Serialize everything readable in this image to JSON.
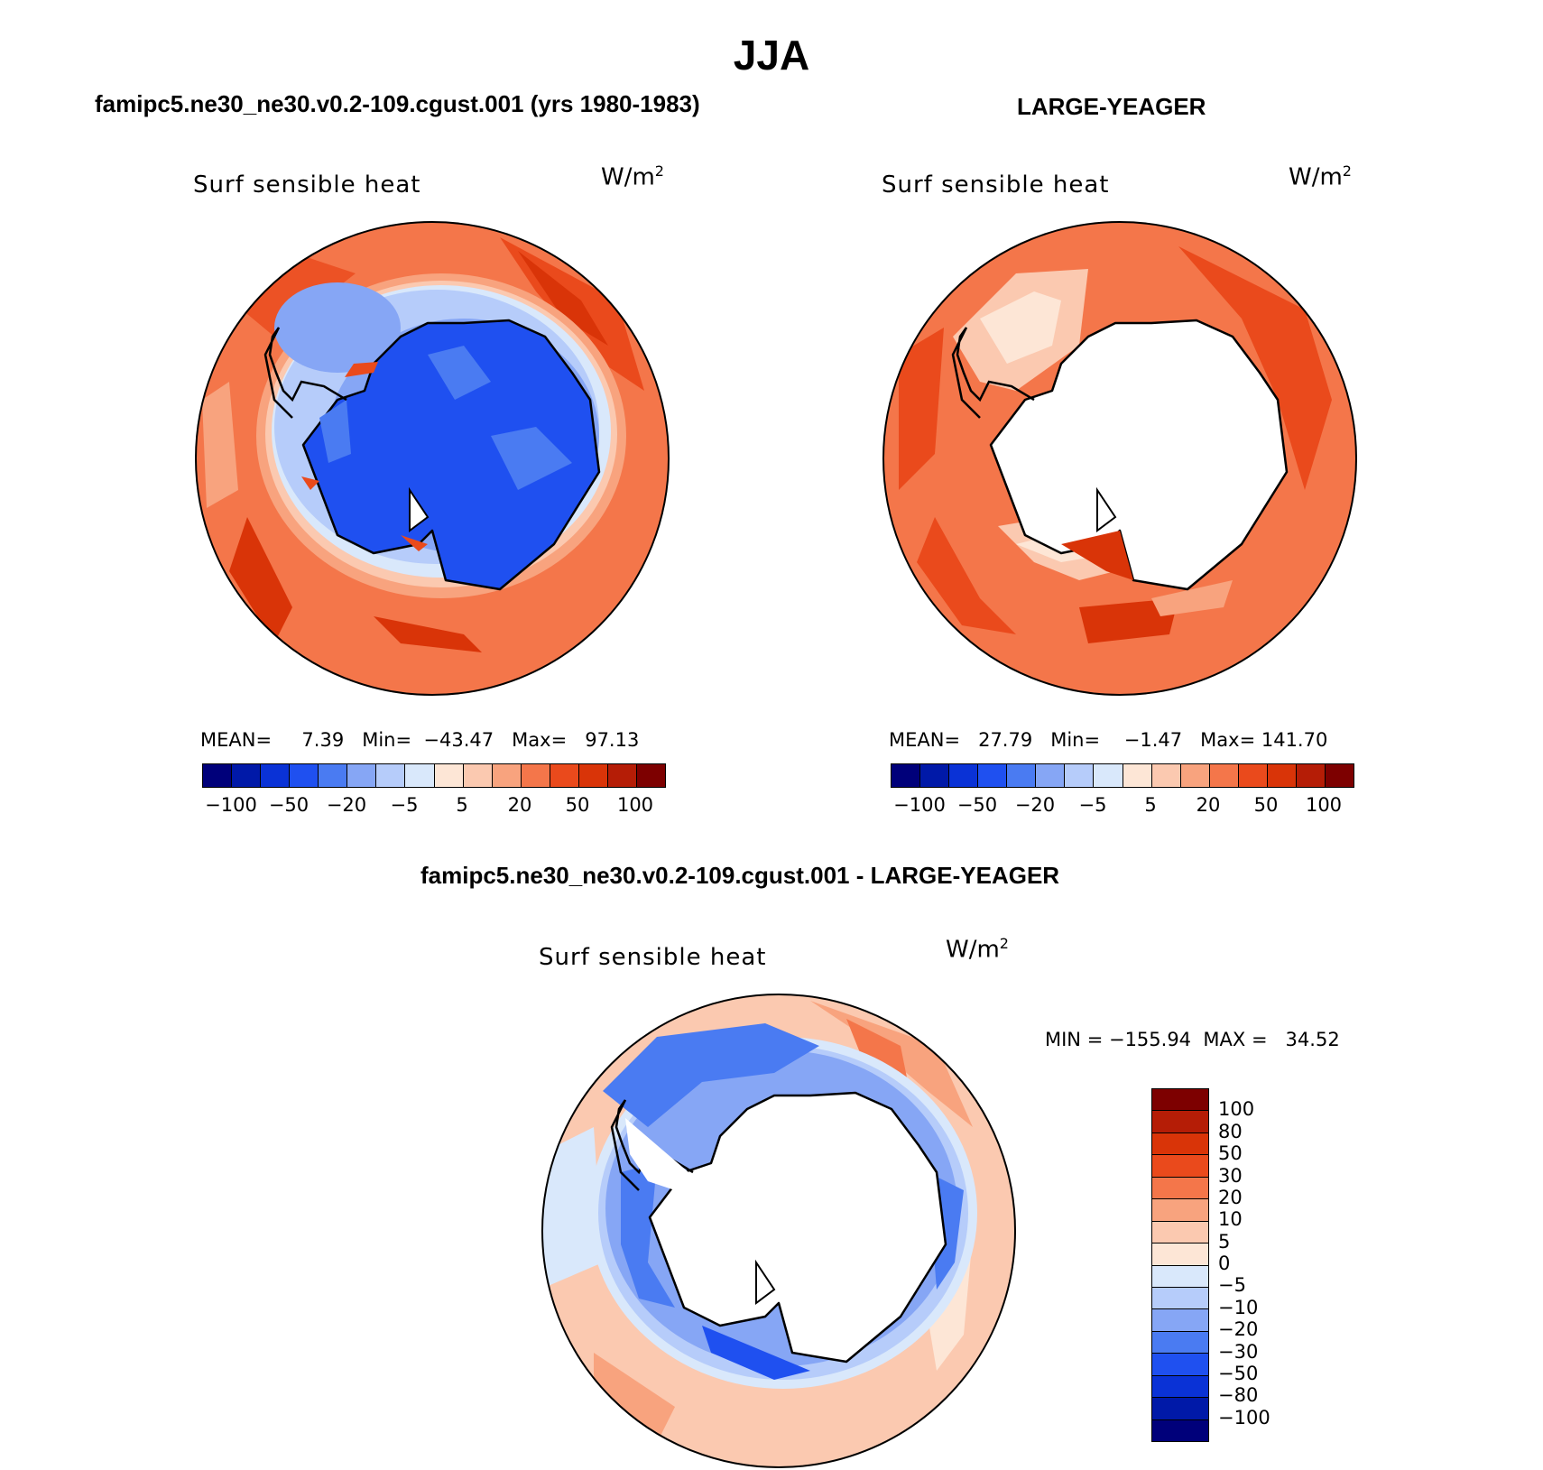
{
  "page": {
    "title": "JJA"
  },
  "panels": {
    "model": {
      "heading": "famipc5.ne30_ne30.v0.2-109.cgust.001 (yrs 1980-1983)",
      "variable": "Surf  sensible  heat",
      "unit_base": "W/m",
      "unit_exp": "2",
      "stats": "MEAN=     7.39   Min=  −43.47   Max=   97.13",
      "colorbar_ticks": [
        "−100",
        "−50",
        "−20",
        "−5",
        "5",
        "20",
        "50",
        "100"
      ]
    },
    "obs": {
      "heading": "LARGE-YEAGER",
      "variable": "Surf  sensible  heat",
      "unit_base": "W/m",
      "unit_exp": "2",
      "stats": "MEAN=   27.79   Min=    −1.47   Max= 141.70",
      "colorbar_ticks": [
        "−100",
        "−50",
        "−20",
        "−5",
        "5",
        "20",
        "50",
        "100"
      ]
    },
    "diff": {
      "heading": "famipc5.ne30_ne30.v0.2-109.cgust.001 - LARGE-YEAGER",
      "variable": "Surf  sensible  heat",
      "unit_base": "W/m",
      "unit_exp": "2",
      "stats": "MIN = −155.94  MAX =   34.52",
      "colorbar_ticks": [
        "100",
        "80",
        "50",
        "30",
        "20",
        "10",
        "5",
        "0",
        "−5",
        "−10",
        "−20",
        "−30",
        "−50",
        "−80",
        "−100"
      ]
    }
  },
  "colors": {
    "abs_scale": [
      "#00007a",
      "#0019a8",
      "#0a32d6",
      "#1f50f0",
      "#4a7bf2",
      "#86a6f5",
      "#b6ccfa",
      "#d9e8fb",
      "#fde6d6",
      "#fbc9b0",
      "#f8a37e",
      "#f4764a",
      "#ea4a1c",
      "#d93408",
      "#b51d06",
      "#7d0000"
    ],
    "diff_scale": [
      "#7d0000",
      "#b51d06",
      "#d93408",
      "#ea4a1c",
      "#f4764a",
      "#f8a37e",
      "#fbc9b0",
      "#fde6d6",
      "#d9e8fb",
      "#b6ccfa",
      "#86a6f5",
      "#4a7bf2",
      "#1f50f0",
      "#0a32d6",
      "#0019a8",
      "#00007a"
    ],
    "land_fill": "#ffffff",
    "coastline": "#000000"
  }
}
